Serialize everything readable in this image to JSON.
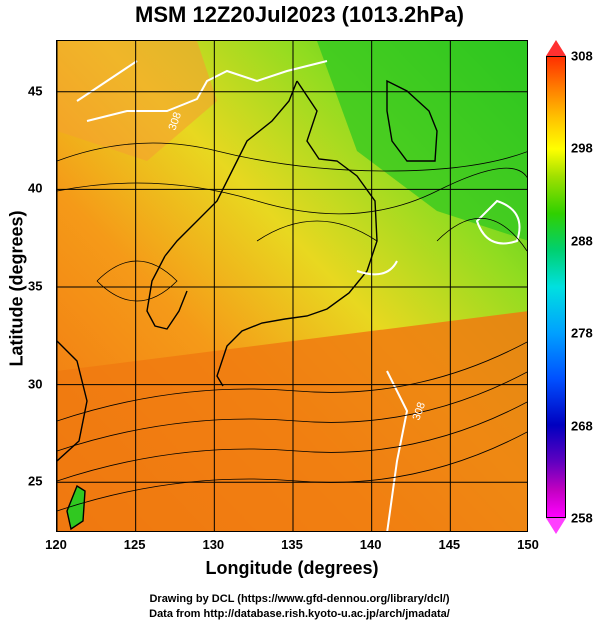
{
  "title": "MSM 12Z20Jul2023 (1013.2hPa)",
  "x_axis": {
    "label": "Longitude (degrees)",
    "ticks": [
      "120",
      "125",
      "130",
      "135",
      "140",
      "145",
      "150"
    ],
    "range": [
      120,
      150
    ]
  },
  "y_axis": {
    "label": "Latitude  (degrees)",
    "ticks": [
      "25",
      "30",
      "35",
      "40",
      "45"
    ],
    "range": [
      22.4,
      47.6
    ]
  },
  "colorbar": {
    "ticks": [
      "308",
      "298",
      "288",
      "278",
      "268",
      "258"
    ],
    "range": [
      258,
      308
    ]
  },
  "contour_labels": [
    "308",
    "308"
  ],
  "credits": {
    "line1": "Drawing by DCL (https://www.gfd-dennou.org/library/dcl/)",
    "line2": "Data from http://database.rish.kyoto-u.ac.jp/arch/jmadata/"
  },
  "colors": {
    "warm": "#f07a10",
    "mid": "#e6d020",
    "cool": "#20c820"
  }
}
